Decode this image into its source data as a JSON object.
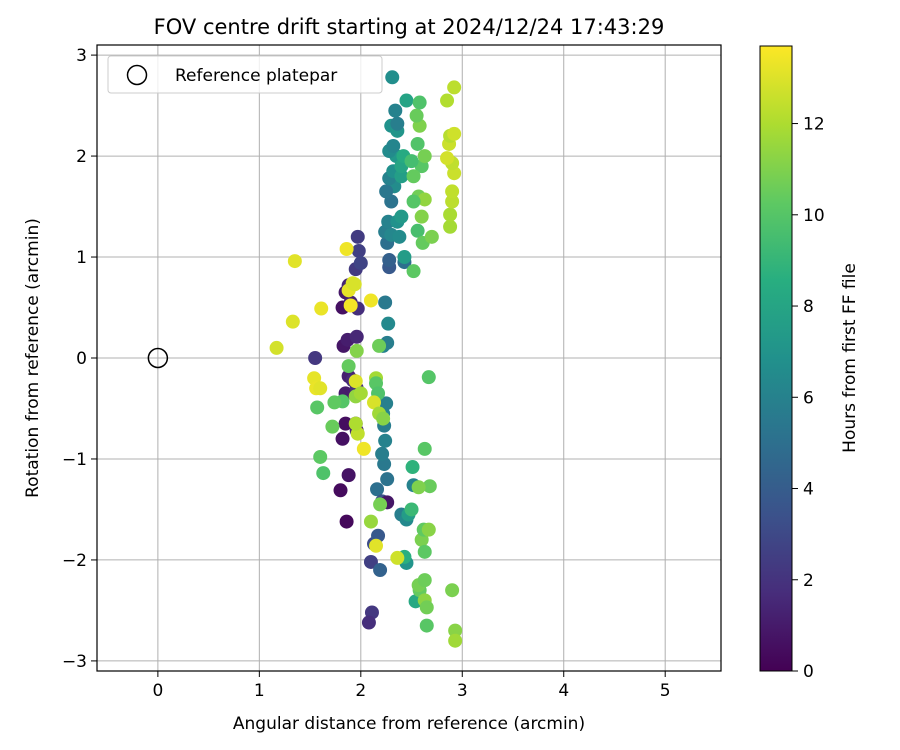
{
  "chart_data": {
    "type": "scatter",
    "title": "FOV centre drift starting at 2024/12/24 17:43:29",
    "xlabel": "Angular distance from reference (arcmin)",
    "ylabel": "Rotation from reference (arcmin)",
    "xlim": [
      -0.6,
      5.55
    ],
    "ylim": [
      -3.1,
      3.1
    ],
    "xticks": [
      0,
      1,
      2,
      3,
      4,
      5
    ],
    "yticks": [
      -3,
      -2,
      -1,
      0,
      1,
      2,
      3
    ],
    "xtick_labels": [
      "0",
      "1",
      "2",
      "3",
      "4",
      "5"
    ],
    "ytick_labels": [
      "−3",
      "−2",
      "−1",
      "0",
      "1",
      "2",
      "3"
    ],
    "grid": true,
    "legend": {
      "position": "top-left",
      "label": "Reference platepar"
    },
    "reference_point": {
      "x": 0,
      "y": 0
    },
    "colorbar": {
      "label": "Hours from first FF file",
      "min": 0,
      "max": 13.7,
      "ticks": [
        0,
        2,
        4,
        6,
        8,
        10,
        12
      ],
      "tick_labels": [
        "0",
        "2",
        "4",
        "6",
        "8",
        "10",
        "12"
      ],
      "colormap": "viridis"
    },
    "series": [
      {
        "points": [
          [
            1.85,
            -0.65,
            0.5
          ],
          [
            1.82,
            -0.8,
            0.6
          ],
          [
            1.8,
            -1.31,
            0.4
          ],
          [
            1.86,
            -1.62,
            0.3
          ],
          [
            1.88,
            -1.16,
            0.7
          ],
          [
            1.85,
            -0.35,
            1.0
          ],
          [
            1.88,
            -0.18,
            1.2
          ],
          [
            1.92,
            -0.22,
            1.6
          ],
          [
            1.96,
            -0.3,
            1.9
          ],
          [
            1.83,
            0.12,
            0.8
          ],
          [
            1.87,
            0.18,
            1.1
          ],
          [
            1.96,
            0.21,
            1.5
          ],
          [
            1.82,
            0.5,
            0.6
          ],
          [
            1.85,
            0.65,
            0.9
          ],
          [
            1.9,
            0.55,
            1.3
          ],
          [
            1.97,
            0.49,
            1.8
          ],
          [
            1.88,
            0.72,
            1.4
          ],
          [
            1.95,
            0.88,
            2.3
          ],
          [
            1.98,
            1.06,
            2.6
          ],
          [
            2.0,
            0.94,
            2.8
          ],
          [
            1.97,
            1.2,
            2.4
          ],
          [
            1.55,
            0.0,
            2.2
          ],
          [
            1.95,
            -0.65,
            1.2
          ],
          [
            1.96,
            -0.72,
            1.5
          ],
          [
            2.1,
            -2.02,
            2.6
          ],
          [
            2.11,
            -2.52,
            2.2
          ],
          [
            2.08,
            -2.62,
            1.8
          ],
          [
            2.13,
            -1.84,
            3.2
          ],
          [
            2.17,
            -1.76,
            3.8
          ],
          [
            2.19,
            -2.1,
            4.3
          ],
          [
            2.16,
            -1.3,
            5.0
          ],
          [
            2.21,
            -1.42,
            3.4
          ],
          [
            2.26,
            -1.43,
            0.8
          ],
          [
            2.26,
            -1.2,
            5.2
          ],
          [
            2.23,
            -1.05,
            5.5
          ],
          [
            2.21,
            -0.95,
            5.8
          ],
          [
            2.24,
            -0.82,
            6.0
          ],
          [
            2.23,
            -0.67,
            5.7
          ],
          [
            2.22,
            -0.55,
            6.2
          ],
          [
            2.25,
            -0.45,
            5.9
          ],
          [
            2.22,
            0.12,
            6.1
          ],
          [
            2.26,
            0.15,
            5.8
          ],
          [
            2.27,
            0.34,
            6.4
          ],
          [
            2.24,
            0.55,
            5.5
          ],
          [
            2.28,
            0.9,
            3.8
          ],
          [
            2.28,
            0.97,
            4.2
          ],
          [
            2.26,
            1.14,
            5.0
          ],
          [
            2.24,
            1.25,
            5.8
          ],
          [
            2.3,
            1.22,
            6.3
          ],
          [
            2.27,
            1.35,
            6.0
          ],
          [
            2.3,
            1.55,
            5.2
          ],
          [
            2.33,
            1.7,
            6.6
          ],
          [
            2.25,
            1.65,
            5.4
          ],
          [
            2.28,
            1.78,
            6.0
          ],
          [
            2.32,
            1.85,
            6.8
          ],
          [
            2.35,
            2.0,
            7.2
          ],
          [
            2.28,
            2.05,
            6.5
          ],
          [
            2.32,
            2.1,
            6.2
          ],
          [
            2.3,
            2.3,
            6.9
          ],
          [
            2.36,
            2.25,
            7.1
          ],
          [
            2.34,
            2.45,
            6.0
          ],
          [
            2.31,
            2.78,
            6.7
          ],
          [
            2.36,
            2.32,
            5.8
          ],
          [
            2.36,
            1.35,
            6.9
          ],
          [
            2.4,
            1.4,
            7.3
          ],
          [
            2.38,
            1.2,
            6.5
          ],
          [
            2.43,
            0.95,
            5.0
          ],
          [
            2.43,
            1.0,
            7.5
          ],
          [
            2.4,
            1.8,
            7.6
          ],
          [
            2.4,
            1.9,
            8.0
          ],
          [
            2.42,
            2.0,
            8.3
          ],
          [
            2.45,
            2.55,
            7.9
          ],
          [
            2.4,
            -1.55,
            5.8
          ],
          [
            2.45,
            -1.6,
            6.4
          ],
          [
            2.47,
            -1.55,
            7.5
          ],
          [
            2.45,
            -2.03,
            7.0
          ],
          [
            2.43,
            -1.97,
            8.6
          ],
          [
            2.51,
            -1.08,
            8.8
          ],
          [
            2.52,
            -1.26,
            6.0
          ],
          [
            2.5,
            -1.5,
            9.2
          ],
          [
            2.54,
            -2.41,
            8.2
          ],
          [
            2.58,
            -2.3,
            10.4
          ],
          [
            2.57,
            -2.25,
            10.8
          ],
          [
            2.63,
            -2.4,
            11.3
          ],
          [
            2.65,
            -2.47,
            10.7
          ],
          [
            2.65,
            -2.65,
            10.1
          ],
          [
            2.63,
            -2.2,
            10.6
          ],
          [
            2.6,
            -1.8,
            10.9
          ],
          [
            2.62,
            -1.7,
            10.3
          ],
          [
            2.67,
            -1.7,
            11.2
          ],
          [
            2.63,
            -1.92,
            10.2
          ],
          [
            2.68,
            -1.27,
            10.5
          ],
          [
            2.63,
            -0.9,
            10.1
          ],
          [
            2.67,
            -0.19,
            10.0
          ],
          [
            2.57,
            -1.28,
            11.0
          ],
          [
            2.52,
            0.86,
            10.2
          ],
          [
            2.56,
            1.26,
            9.6
          ],
          [
            2.61,
            1.14,
            10.4
          ],
          [
            2.7,
            1.2,
            10.9
          ],
          [
            2.6,
            1.4,
            11.1
          ],
          [
            2.57,
            1.6,
            10.7
          ],
          [
            2.63,
            1.57,
            11.4
          ],
          [
            2.6,
            1.9,
            10.1
          ],
          [
            2.63,
            2.0,
            10.8
          ],
          [
            2.56,
            2.12,
            9.9
          ],
          [
            2.58,
            2.3,
            11.0
          ],
          [
            2.55,
            2.4,
            10.5
          ],
          [
            2.58,
            2.53,
            9.8
          ],
          [
            2.52,
            1.55,
            10.0
          ],
          [
            2.52,
            1.8,
            10.4
          ],
          [
            2.5,
            1.95,
            9.5
          ],
          [
            2.9,
            -2.3,
            10.9
          ],
          [
            2.93,
            -2.7,
            11.2
          ],
          [
            2.93,
            -2.8,
            11.7
          ],
          [
            2.88,
            1.3,
            11.8
          ],
          [
            2.88,
            1.42,
            11.9
          ],
          [
            2.9,
            1.55,
            12.3
          ],
          [
            2.9,
            1.65,
            12.4
          ],
          [
            2.92,
            1.83,
            12.6
          ],
          [
            2.9,
            1.93,
            12.4
          ],
          [
            2.85,
            1.98,
            12.8
          ],
          [
            2.87,
            2.12,
            12.6
          ],
          [
            2.88,
            2.2,
            12.2
          ],
          [
            2.92,
            2.22,
            12.7
          ],
          [
            2.85,
            2.55,
            12.1
          ],
          [
            2.92,
            2.68,
            12.3
          ],
          [
            2.18,
            0.12,
            10.6
          ],
          [
            2.15,
            -0.2,
            11.8
          ],
          [
            2.15,
            -0.25,
            10.1
          ],
          [
            2.17,
            -0.35,
            9.8
          ],
          [
            2.13,
            -0.44,
            12.9
          ],
          [
            2.18,
            -0.55,
            11.7
          ],
          [
            2.22,
            -0.6,
            11.2
          ],
          [
            2.19,
            -1.45,
            10.8
          ],
          [
            2.1,
            -1.62,
            11.5
          ],
          [
            2.15,
            -1.86,
            13.1
          ],
          [
            2.36,
            -1.98,
            12.7
          ],
          [
            2.03,
            -0.9,
            13.4
          ],
          [
            1.97,
            -0.75,
            12.4
          ],
          [
            1.95,
            -0.65,
            12.0
          ],
          [
            1.95,
            -0.38,
            11.4
          ],
          [
            1.95,
            -0.23,
            13.0
          ],
          [
            2.0,
            -0.35,
            11.8
          ],
          [
            1.96,
            0.07,
            11.1
          ],
          [
            1.88,
            -0.08,
            10.4
          ],
          [
            1.82,
            -0.43,
            10.0
          ],
          [
            1.74,
            -0.44,
            10.3
          ],
          [
            1.72,
            -0.68,
            10.5
          ],
          [
            1.6,
            -0.98,
            10.2
          ],
          [
            1.63,
            -1.14,
            9.8
          ],
          [
            1.57,
            -0.49,
            10.1
          ],
          [
            1.54,
            -0.2,
            13.2
          ],
          [
            1.56,
            -0.3,
            13.3
          ],
          [
            1.6,
            -0.3,
            13.1
          ],
          [
            1.17,
            0.1,
            12.8
          ],
          [
            1.33,
            0.36,
            13.0
          ],
          [
            1.35,
            0.96,
            13.1
          ],
          [
            1.61,
            0.49,
            13.3
          ],
          [
            1.86,
            1.08,
            13.4
          ],
          [
            1.88,
            0.67,
            13.2
          ],
          [
            1.9,
            0.52,
            13.5
          ],
          [
            1.92,
            0.74,
            13.0
          ],
          [
            2.1,
            0.57,
            13.4
          ],
          [
            1.94,
            0.73,
            12.9
          ]
        ]
      }
    ]
  }
}
